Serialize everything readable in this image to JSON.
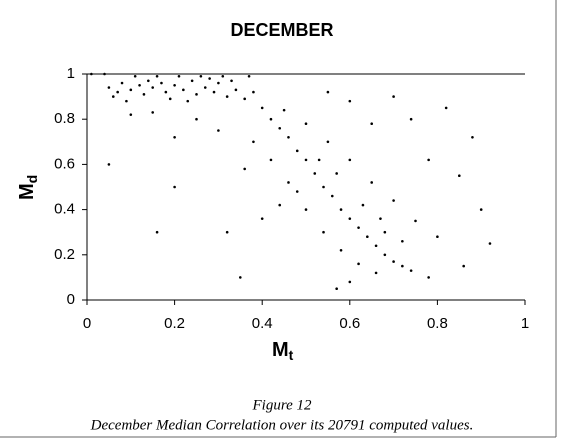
{
  "chart_data": {
    "type": "scatter",
    "title": "DECEMBER",
    "x_label": {
      "main": "M",
      "sub": "t"
    },
    "y_label": {
      "main": "M",
      "sub": "d"
    },
    "caption": [
      "Figure 12",
      "December Median Correlation over its 20791 computed values."
    ],
    "color": "#000000",
    "x": [
      0.05,
      0.07,
      0.08,
      0.1,
      0.12,
      0.13,
      0.15,
      0.17,
      0.18,
      0.2,
      0.22,
      0.24,
      0.25,
      0.27,
      0.29,
      0.3,
      0.32,
      0.34,
      0.36,
      0.38,
      0.06,
      0.09,
      0.14,
      0.19,
      0.23,
      0.28,
      0.33,
      0.11,
      0.16,
      0.21,
      0.26,
      0.31,
      0.37,
      0.4,
      0.42,
      0.44,
      0.46,
      0.48,
      0.5,
      0.52,
      0.54,
      0.56,
      0.58,
      0.6,
      0.62,
      0.64,
      0.66,
      0.68,
      0.7,
      0.72,
      0.74,
      0.45,
      0.5,
      0.55,
      0.6,
      0.65,
      0.7,
      0.75,
      0.8,
      0.42,
      0.46,
      0.5,
      0.54,
      0.58,
      0.62,
      0.66,
      0.6,
      0.57,
      0.68,
      0.72,
      0.63,
      0.67,
      0.53,
      0.57,
      0.48,
      0.44,
      0.4,
      0.38,
      0.36,
      0.3,
      0.25,
      0.2,
      0.15,
      0.1,
      0.85,
      0.88,
      0.9,
      0.82,
      0.78,
      0.74,
      0.7,
      0.65,
      0.6,
      0.55,
      0.92,
      0.86,
      0.78,
      0.32,
      0.2,
      0.16,
      0.35,
      0.05,
      0.01,
      0.04
    ],
    "y": [
      0.94,
      0.92,
      0.96,
      0.93,
      0.95,
      0.91,
      0.94,
      0.96,
      0.92,
      0.95,
      0.93,
      0.97,
      0.91,
      0.94,
      0.92,
      0.96,
      0.9,
      0.93,
      0.89,
      0.92,
      0.9,
      0.88,
      0.97,
      0.89,
      0.88,
      0.98,
      0.97,
      0.99,
      0.99,
      0.99,
      0.99,
      0.99,
      0.99,
      0.85,
      0.8,
      0.76,
      0.72,
      0.66,
      0.62,
      0.56,
      0.5,
      0.46,
      0.4,
      0.36,
      0.32,
      0.28,
      0.24,
      0.2,
      0.17,
      0.15,
      0.13,
      0.84,
      0.78,
      0.7,
      0.62,
      0.52,
      0.44,
      0.35,
      0.28,
      0.62,
      0.52,
      0.4,
      0.3,
      0.22,
      0.16,
      0.12,
      0.08,
      0.05,
      0.3,
      0.26,
      0.42,
      0.36,
      0.62,
      0.56,
      0.48,
      0.42,
      0.36,
      0.7,
      0.58,
      0.75,
      0.8,
      0.72,
      0.83,
      0.82,
      0.55,
      0.72,
      0.4,
      0.85,
      0.62,
      0.8,
      0.9,
      0.78,
      0.88,
      0.92,
      0.25,
      0.15,
      0.1,
      0.3,
      0.5,
      0.3,
      0.1,
      0.6,
      1.0,
      1.0
    ],
    "xlim": [
      0,
      1
    ],
    "ylim": [
      0,
      1
    ],
    "xticks": [
      0,
      0.2,
      0.4,
      0.6,
      0.8,
      1
    ],
    "yticks": [
      0,
      0.2,
      0.4,
      0.6,
      0.8,
      1
    ]
  }
}
